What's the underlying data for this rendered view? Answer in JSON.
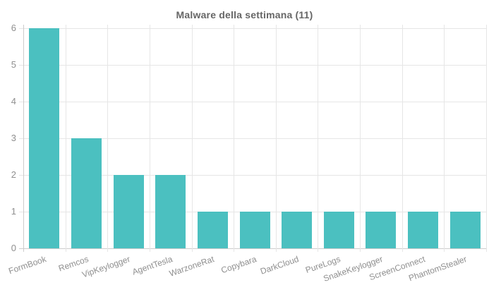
{
  "chart_data": {
    "type": "bar",
    "title": "Malware della settimana (11)",
    "categories": [
      "FormBook",
      "Remcos",
      "VipKeylogger",
      "AgentTesla",
      "WarzoneRat",
      "Copybara",
      "DarkCloud",
      "PureLogs",
      "SnakeKeylogger",
      "ScreenConnect",
      "PhantomStealer"
    ],
    "values": [
      6,
      3,
      2,
      2,
      1,
      1,
      1,
      1,
      1,
      1,
      1
    ],
    "xlabel": "",
    "ylabel": "",
    "ylim": [
      0,
      6
    ],
    "ytick_step": 1,
    "yticks": [
      0,
      1,
      2,
      3,
      4,
      5,
      6
    ],
    "grid": true,
    "legend_position": "none",
    "x_label_rotation_deg": -19,
    "colors": {
      "bar": "#4bc0c0",
      "grid": "#e6e6e6",
      "axis": "#cccccc",
      "tick_label": "#8f8f8f",
      "title": "#666666",
      "background": "#ffffff"
    }
  }
}
